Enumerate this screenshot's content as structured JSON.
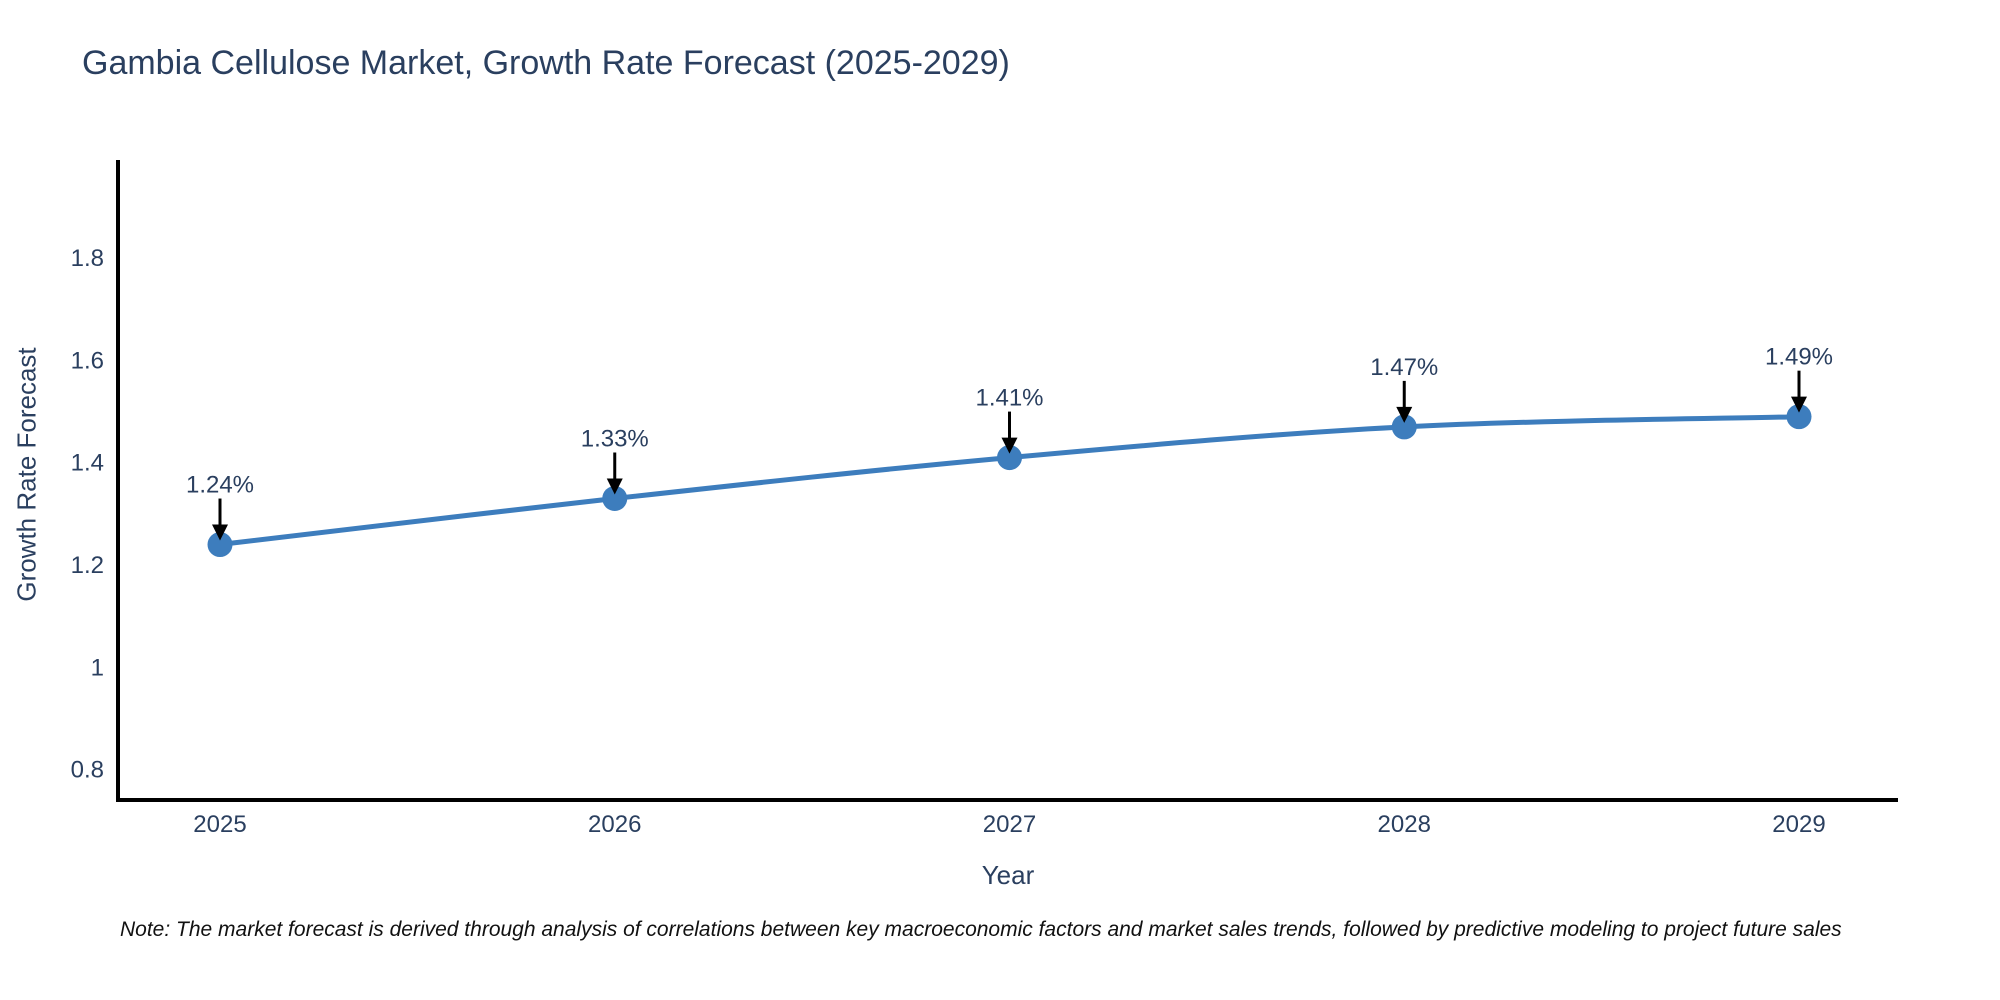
{
  "chart_data": {
    "type": "line",
    "title": "Gambia Cellulose Market, Growth Rate Forecast (2025-2029)",
    "xlabel": "Year",
    "ylabel": "Growth Rate Forecast",
    "x": [
      2025,
      2026,
      2027,
      2028,
      2029
    ],
    "values": [
      1.24,
      1.33,
      1.41,
      1.47,
      1.49
    ],
    "point_labels": [
      "1.24%",
      "1.33%",
      "1.41%",
      "1.47%",
      "1.49%"
    ],
    "yticks": [
      "0.8",
      "1",
      "1.2",
      "1.4",
      "1.6",
      "1.8"
    ],
    "ylim": [
      0.74,
      1.99
    ],
    "grid": false,
    "legend_position": "none",
    "line_color": "#3d7dbd",
    "marker_color": "#3d7dbd",
    "axis_color": "#000000",
    "text_color": "#2a3f5f",
    "annotation_arrow_color": "#000000"
  },
  "note": {
    "text": "Note: The market forecast is derived through analysis of correlations between key macroeconomic factors and market sales trends, followed by predictive modeling to project future sales"
  }
}
